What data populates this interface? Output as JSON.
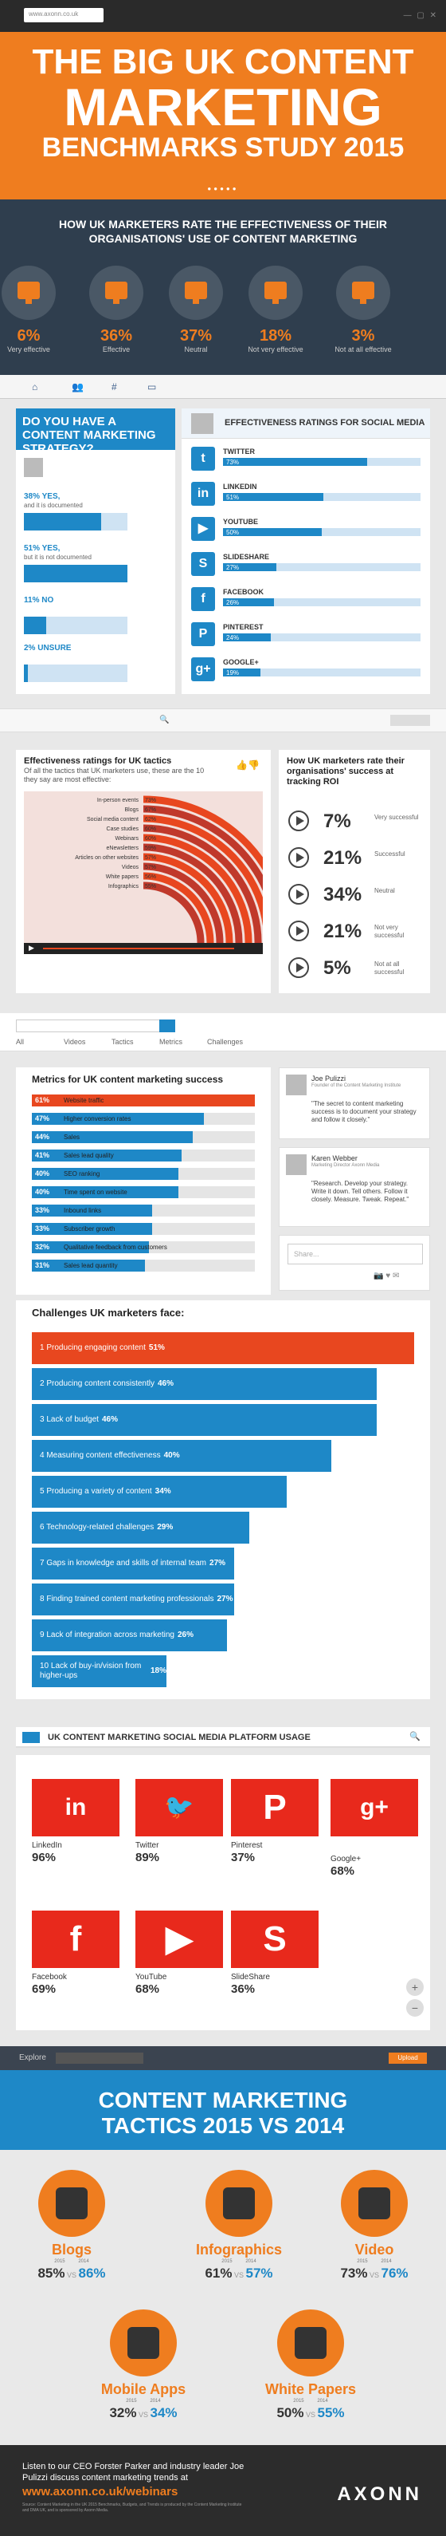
{
  "colors": {
    "orange": "#ef7d1f",
    "blue": "#1e88c7",
    "red": "#e8471f",
    "dark": "#2f3e4e"
  },
  "hero": {
    "url": "www.axonn.co.uk",
    "line1": "THE BIG UK CONTENT",
    "line2": "MARKETING",
    "line3": "BENCHMARKS STUDY 2015",
    "pager": "●●●●●"
  },
  "effectiveness": {
    "title_line1": "HOW UK MARKETERS RATE THE EFFECTIVENESS OF THEIR",
    "title_line2": "ORGANISATIONS' USE OF CONTENT MARKETING",
    "items": [
      {
        "pct": "6%",
        "label": "Very effective"
      },
      {
        "pct": "36%",
        "label": "Effective"
      },
      {
        "pct": "37%",
        "label": "Neutral"
      },
      {
        "pct": "18%",
        "label": "Not very effective"
      },
      {
        "pct": "3%",
        "label": "Not at all effective"
      }
    ]
  },
  "strategy": {
    "heading": "DO YOU HAVE A CONTENT MARKETING STRATEGY?",
    "items": [
      {
        "value": "38% YES,",
        "sub": "and it is documented",
        "pct": 38
      },
      {
        "value": "51% YES,",
        "sub": "but it is not documented",
        "pct": 51
      },
      {
        "value": "11% NO",
        "sub": "",
        "pct": 11
      },
      {
        "value": "2% UNSURE",
        "sub": "",
        "pct": 2
      }
    ]
  },
  "social": {
    "heading": "EFFECTIVENESS RATINGS FOR SOCIAL MEDIA",
    "items": [
      {
        "name": "TWITTER",
        "pct_label": "73%",
        "pct": 73,
        "icon": "twitter-icon",
        "glyph": "t"
      },
      {
        "name": "LINKEDIN",
        "pct_label": "51%",
        "pct": 51,
        "icon": "linkedin-icon",
        "glyph": "in"
      },
      {
        "name": "YOUTUBE",
        "pct_label": "50%",
        "pct": 50,
        "icon": "youtube-icon",
        "glyph": "▶"
      },
      {
        "name": "SLIDESHARE",
        "pct_label": "27%",
        "pct": 27,
        "icon": "slideshare-icon",
        "glyph": "S"
      },
      {
        "name": "FACEBOOK",
        "pct_label": "26%",
        "pct": 26,
        "icon": "facebook-icon",
        "glyph": "f"
      },
      {
        "name": "PINTEREST",
        "pct_label": "24%",
        "pct": 24,
        "icon": "pinterest-icon",
        "glyph": "P"
      },
      {
        "name": "GOOGLE+",
        "pct_label": "19%",
        "pct": 19,
        "icon": "googleplus-icon",
        "glyph": "g+"
      }
    ]
  },
  "tactics_chart": {
    "title": "Effectiveness ratings for UK tactics",
    "subtitle": "Of all the tactics that UK marketers use, these are the 10 they say are most effective:",
    "items": [
      {
        "label": "In-person events",
        "pct": "73%",
        "value": 73
      },
      {
        "label": "Blogs",
        "pct": "67%",
        "value": 67
      },
      {
        "label": "Social media content",
        "pct": "62%",
        "value": 62
      },
      {
        "label": "Case studies",
        "pct": "60%",
        "value": 60
      },
      {
        "label": "Webinars",
        "pct": "60%",
        "value": 60
      },
      {
        "label": "eNewsletters",
        "pct": "59%",
        "value": 59
      },
      {
        "label": "Articles on other websites",
        "pct": "57%",
        "value": 57
      },
      {
        "label": "Videos",
        "pct": "57%",
        "value": 57
      },
      {
        "label": "White papers",
        "pct": "56%",
        "value": 56
      },
      {
        "label": "Infographics",
        "pct": "55%",
        "value": 55
      }
    ]
  },
  "roi": {
    "title": "How UK marketers rate their organisations' success at tracking ROI",
    "items": [
      {
        "pct": "7%",
        "label": "Very successful"
      },
      {
        "pct": "21%",
        "label": "Successful"
      },
      {
        "pct": "34%",
        "label": "Neutral"
      },
      {
        "pct": "21%",
        "label": "Not very successful"
      },
      {
        "pct": "5%",
        "label": "Not at all successful"
      }
    ]
  },
  "nav": {
    "items": [
      "All",
      "Videos",
      "Tactics",
      "Metrics",
      "Challenges"
    ]
  },
  "metrics": {
    "title": "Metrics for UK content marketing success",
    "items": [
      {
        "pct": "61%",
        "label": "Website traffic",
        "value": 61
      },
      {
        "pct": "47%",
        "label": "Higher conversion rates",
        "value": 47
      },
      {
        "pct": "44%",
        "label": "Sales",
        "value": 44
      },
      {
        "pct": "41%",
        "label": "Sales lead quality",
        "value": 41
      },
      {
        "pct": "40%",
        "label": "SEO ranking",
        "value": 40
      },
      {
        "pct": "40%",
        "label": "Time spent on website",
        "value": 40
      },
      {
        "pct": "33%",
        "label": "Inbound links",
        "value": 33
      },
      {
        "pct": "33%",
        "label": "Subscriber growth",
        "value": 33
      },
      {
        "pct": "32%",
        "label": "Qualitative feedback from customers",
        "value": 32
      },
      {
        "pct": "31%",
        "label": "Sales lead quantity",
        "value": 31
      }
    ]
  },
  "quotes": [
    {
      "name": "Joe Pulizzi",
      "role": "Founder of the Content Marketing Institute",
      "text": "\"The secret to content marketing success is to document your strategy and follow it closely.\""
    },
    {
      "name": "Karen Webber",
      "role": "Marketing Director Axonn Media",
      "text": "\"Research. Develop your strategy. Write it down. Tell others. Follow it closely. Measure. Tweak. Repeat.\""
    }
  ],
  "share_placeholder": "Share...",
  "challenges": {
    "title": "Challenges UK marketers face:",
    "items": [
      {
        "label": "1 Producing engaging content",
        "pct": "51%",
        "value": 51
      },
      {
        "label": "2 Producing content consistently",
        "pct": "46%",
        "value": 46
      },
      {
        "label": "3 Lack of budget",
        "pct": "46%",
        "value": 46
      },
      {
        "label": "4 Measuring content effectiveness",
        "pct": "40%",
        "value": 40
      },
      {
        "label": "5 Producing a variety of content",
        "pct": "34%",
        "value": 34
      },
      {
        "label": "6 Technology-related challenges",
        "pct": "29%",
        "value": 29
      },
      {
        "label": "7 Gaps in knowledge and skills of internal team",
        "pct": "27%",
        "value": 27
      },
      {
        "label": "8 Finding trained content marketing professionals",
        "pct": "27%",
        "value": 27
      },
      {
        "label": "9 Lack of integration across marketing",
        "pct": "26%",
        "value": 26
      },
      {
        "label": "10 Lack of buy-in/vision from higher-ups",
        "pct": "18%",
        "value": 18
      }
    ]
  },
  "platforms": {
    "title": "UK CONTENT MARKETING SOCIAL MEDIA PLATFORM USAGE",
    "items": [
      {
        "name": "LinkedIn",
        "pct": "96%",
        "glyph": "in",
        "icon": "linkedin-icon",
        "bg": "#e8291c"
      },
      {
        "name": "Twitter",
        "pct": "89%",
        "glyph": "🐦",
        "icon": "twitter-icon",
        "bg": "#e8291c"
      },
      {
        "name": "Pinterest",
        "pct": "37%",
        "glyph": "P",
        "icon": "pinterest-icon",
        "bg": "#e8291c"
      },
      {
        "name": "Google+",
        "pct": "68%",
        "glyph": "g+",
        "icon": "googleplus-icon",
        "bg": "#e8291c"
      },
      {
        "name": "Facebook",
        "pct": "69%",
        "glyph": "f",
        "icon": "facebook-icon",
        "bg": "#e8291c"
      },
      {
        "name": "YouTube",
        "pct": "68%",
        "glyph": "▶",
        "icon": "youtube-icon",
        "bg": "#e8291c"
      },
      {
        "name": "SlideShare",
        "pct": "36%",
        "glyph": "S",
        "icon": "slideshare-icon",
        "bg": "#e8291c"
      }
    ]
  },
  "explore": {
    "label": "Explore",
    "upload": "Upload"
  },
  "tactics_compare": {
    "line1": "CONTENT MARKETING",
    "line2": "TACTICS 2015 VS 2014",
    "y1": "2015",
    "y2": "2014",
    "vs": "VS",
    "items": [
      {
        "name": "Blogs",
        "a": "85%",
        "b": "86%",
        "icon": "person-icon"
      },
      {
        "name": "Infographics",
        "a": "61%",
        "b": "57%",
        "icon": "infographic-icon"
      },
      {
        "name": "Video",
        "a": "73%",
        "b": "76%",
        "icon": "film-icon"
      },
      {
        "name": "Mobile Apps",
        "a": "32%",
        "b": "34%",
        "icon": "phone-icon"
      },
      {
        "name": "White Papers",
        "a": "50%",
        "b": "55%",
        "icon": "document-icon"
      }
    ]
  },
  "footer": {
    "text": "Listen to our CEO Forster Parker and industry leader Joe Pulizzi discuss content marketing trends at",
    "url": "www.axonn.co.uk/webinars",
    "small": "Source: Content Marketing in the UK 2015 Benchmarks, Budgets, and Trends is produced by the Content Marketing Institute and DMA UK, and is sponsored by Axonn Media.",
    "brand": "AXONN"
  }
}
